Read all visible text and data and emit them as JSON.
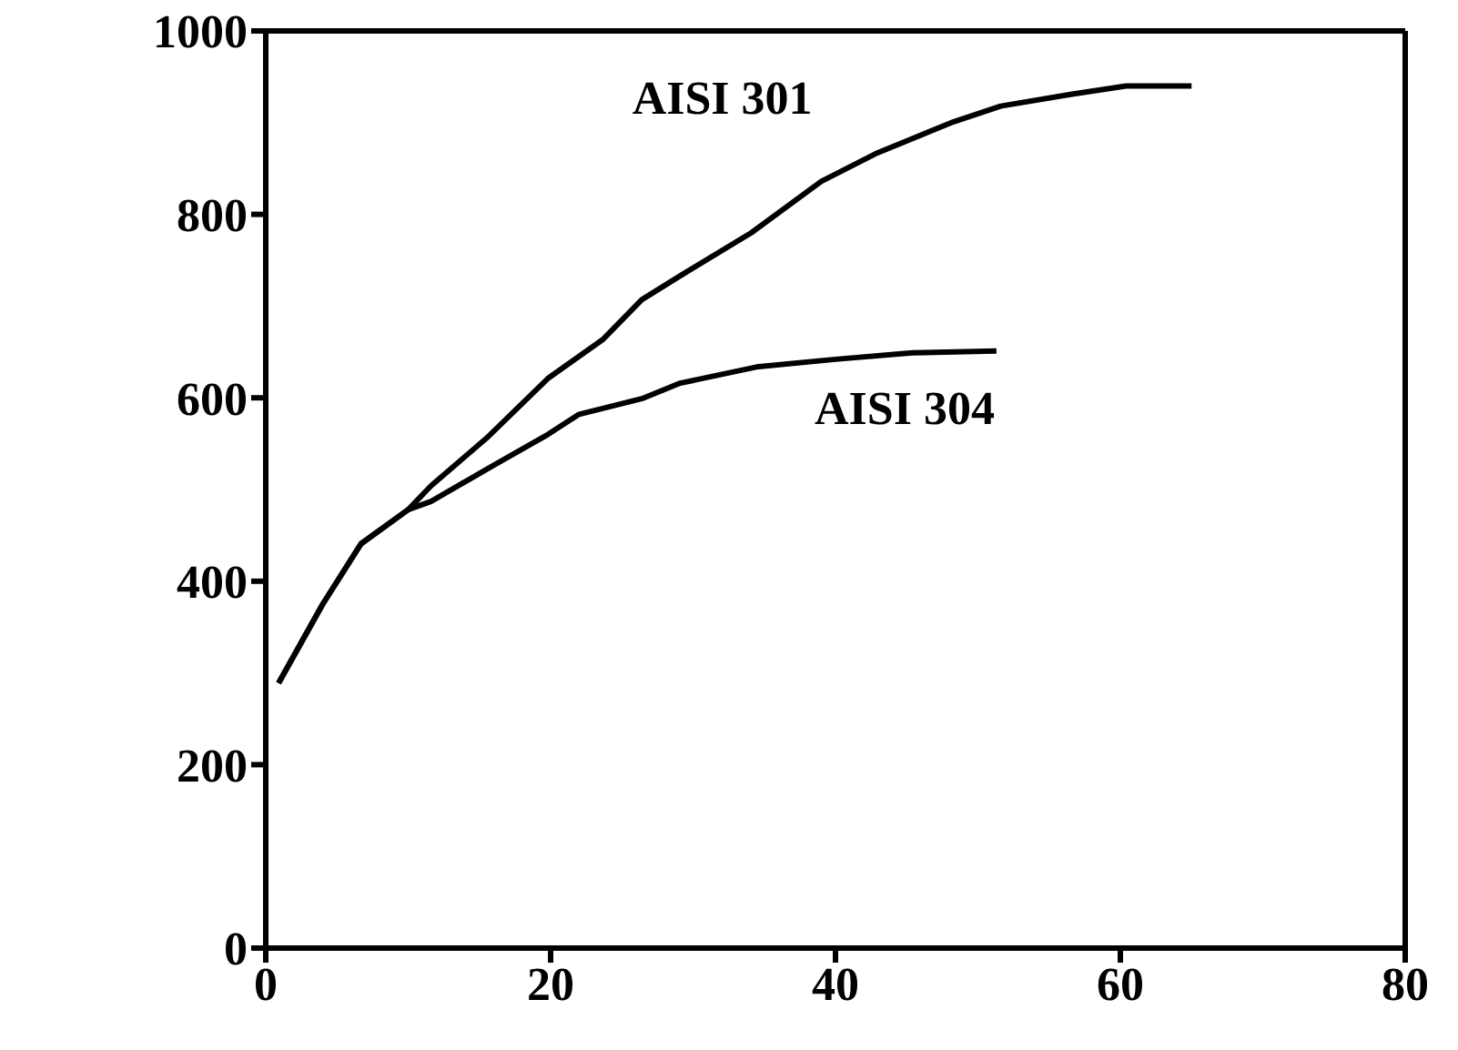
{
  "chart_data": {
    "type": "line",
    "xlim": [
      0,
      80
    ],
    "xticks": [
      0,
      20,
      40,
      60,
      80
    ],
    "ylim": [
      0,
      1000
    ],
    "yticks": [
      0,
      200,
      400,
      600,
      800,
      1000
    ],
    "grid": false,
    "marker": "none",
    "line_style": "solid",
    "series": [
      {
        "name": "AISI 301",
        "color": "#000000",
        "x": [
          0.9,
          4,
          6.7,
          10,
          11.6,
          15.5,
          19.8,
          23.7,
          26.4,
          29.1,
          34.1,
          39,
          42.8,
          48.3,
          51.6,
          56.6,
          60.4,
          65
        ],
        "values": [
          289,
          375,
          441,
          478,
          504,
          556,
          621,
          664,
          707,
          733,
          780,
          836,
          866,
          901,
          918,
          931,
          940,
          940
        ]
      },
      {
        "name": "AISI 304",
        "color": "#000000",
        "x": [
          0.9,
          4,
          6.7,
          10,
          11.6,
          15.5,
          19.8,
          22,
          26.4,
          29.1,
          34.6,
          40,
          45.4,
          51.3
        ],
        "values": [
          289,
          375,
          441,
          478,
          487,
          522,
          560,
          582,
          599,
          616,
          634,
          642,
          649,
          651
        ]
      }
    ]
  }
}
